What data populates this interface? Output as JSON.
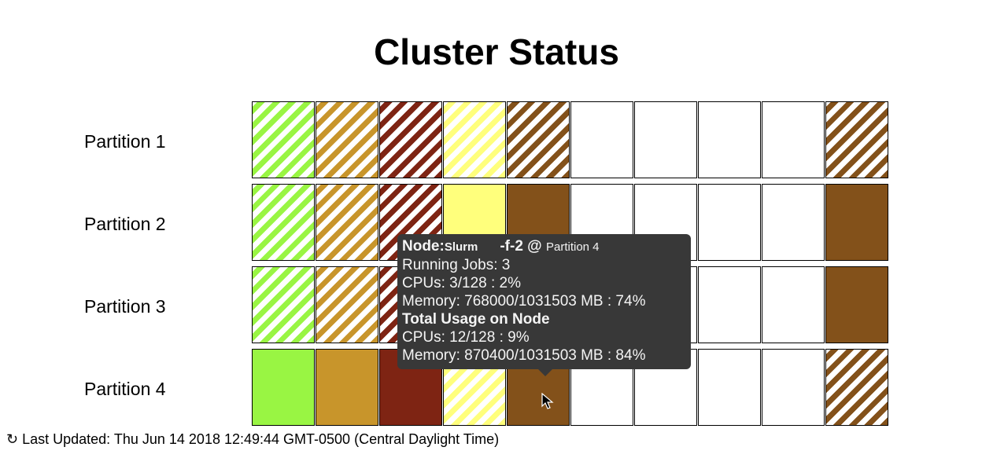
{
  "title": "Cluster Status",
  "colors": {
    "green": "#99f543",
    "tan": "#c8952b",
    "maroon": "#7e2413",
    "yellow": "#ffff7c",
    "brown": "#83511a",
    "empty": "#ffffff"
  },
  "partitions": [
    {
      "label": "Partition 1",
      "nodes": [
        {
          "color": "green",
          "pattern": "striped"
        },
        {
          "color": "tan",
          "pattern": "striped"
        },
        {
          "color": "maroon",
          "pattern": "striped"
        },
        {
          "color": "yellow",
          "pattern": "striped"
        },
        {
          "color": "brown",
          "pattern": "striped"
        },
        {
          "color": "empty",
          "pattern": "solid"
        },
        {
          "color": "empty",
          "pattern": "solid"
        },
        {
          "color": "empty",
          "pattern": "solid"
        },
        {
          "color": "empty",
          "pattern": "solid"
        },
        {
          "color": "brown",
          "pattern": "striped"
        }
      ]
    },
    {
      "label": "Partition 2",
      "nodes": [
        {
          "color": "green",
          "pattern": "striped"
        },
        {
          "color": "tan",
          "pattern": "striped"
        },
        {
          "color": "maroon",
          "pattern": "striped"
        },
        {
          "color": "yellow",
          "pattern": "solid"
        },
        {
          "color": "brown",
          "pattern": "solid"
        },
        {
          "color": "empty",
          "pattern": "solid"
        },
        {
          "color": "empty",
          "pattern": "solid"
        },
        {
          "color": "empty",
          "pattern": "solid"
        },
        {
          "color": "empty",
          "pattern": "solid"
        },
        {
          "color": "brown",
          "pattern": "solid"
        }
      ]
    },
    {
      "label": "Partition 3",
      "nodes": [
        {
          "color": "green",
          "pattern": "striped"
        },
        {
          "color": "tan",
          "pattern": "striped"
        },
        {
          "color": "maroon",
          "pattern": "striped"
        },
        {
          "color": "yellow",
          "pattern": "solid"
        },
        {
          "color": "brown",
          "pattern": "solid"
        },
        {
          "color": "empty",
          "pattern": "solid"
        },
        {
          "color": "empty",
          "pattern": "solid"
        },
        {
          "color": "empty",
          "pattern": "solid"
        },
        {
          "color": "empty",
          "pattern": "solid"
        },
        {
          "color": "brown",
          "pattern": "solid"
        }
      ]
    },
    {
      "label": "Partition 4",
      "nodes": [
        {
          "color": "green",
          "pattern": "solid"
        },
        {
          "color": "tan",
          "pattern": "solid"
        },
        {
          "color": "maroon",
          "pattern": "solid"
        },
        {
          "color": "yellow",
          "pattern": "striped"
        },
        {
          "color": "brown",
          "pattern": "solid"
        },
        {
          "color": "empty",
          "pattern": "solid"
        },
        {
          "color": "empty",
          "pattern": "solid"
        },
        {
          "color": "empty",
          "pattern": "solid"
        },
        {
          "color": "empty",
          "pattern": "solid"
        },
        {
          "color": "brown",
          "pattern": "striped"
        }
      ]
    }
  ],
  "tooltip": {
    "node_label": "Node:",
    "node_prefix": "Slurm",
    "node_suffix": "-f-2 @",
    "partition": "Partition 4",
    "running_jobs": "Running Jobs: 3",
    "cpus": "CPUs: 3/128 : 2%",
    "memory": "Memory: 768000/1031503 MB : 74%",
    "total_heading": "Total Usage on Node",
    "total_cpus": "CPUs: 12/128 : 9%",
    "total_memory": "Memory: 870400/1031503 MB : 84%"
  },
  "footer": {
    "refresh_icon": "↻",
    "last_updated": "Last Updated: Thu Jun 14 2018 12:49:44 GMT-0500 (Central Daylight Time)"
  }
}
